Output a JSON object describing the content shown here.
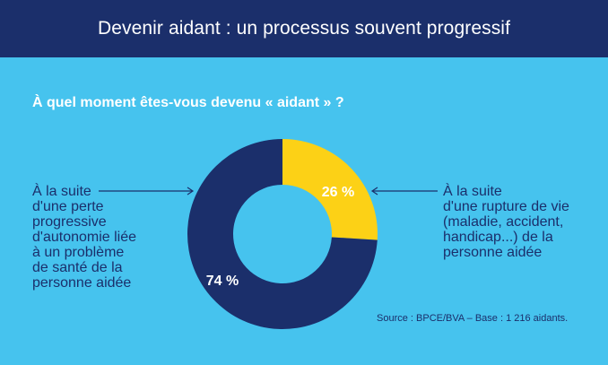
{
  "header": {
    "title": "Devenir aidant : un processus souvent progressif"
  },
  "question": "À quel moment êtes-vous devenu « aidant » ?",
  "annotations": {
    "left": [
      "À la suite",
      "d'une perte",
      "progressive",
      "d'autonomie liée",
      "à un problème",
      "de santé de la",
      "personne aidée"
    ],
    "right": [
      "À la suite",
      "d'une rupture de vie",
      "(maladie, accident,",
      "handicap...) de la",
      "personne aidée"
    ]
  },
  "source": "Source : BPCE/BVA – Base : 1 216 aidants.",
  "colors": {
    "background": "#46c3ee",
    "header": "#1b2f6b",
    "progressive": "#1b2f6b",
    "rupture": "#fcd116",
    "arrow": "#1b2f6b"
  },
  "chart_data": {
    "type": "pie",
    "donut": true,
    "slices": [
      {
        "label": "À la suite d'une rupture de vie (maladie, accident, handicap...) de la personne aidée",
        "value": 26,
        "display": "26 %",
        "color": "#fcd116",
        "label_color": "#ffffff"
      },
      {
        "label": "À la suite d'une perte progressive d'autonomie liée à un problème de santé de la personne aidée",
        "value": 74,
        "display": "74 %",
        "color": "#1b2f6b",
        "label_color": "#ffffff"
      }
    ]
  }
}
